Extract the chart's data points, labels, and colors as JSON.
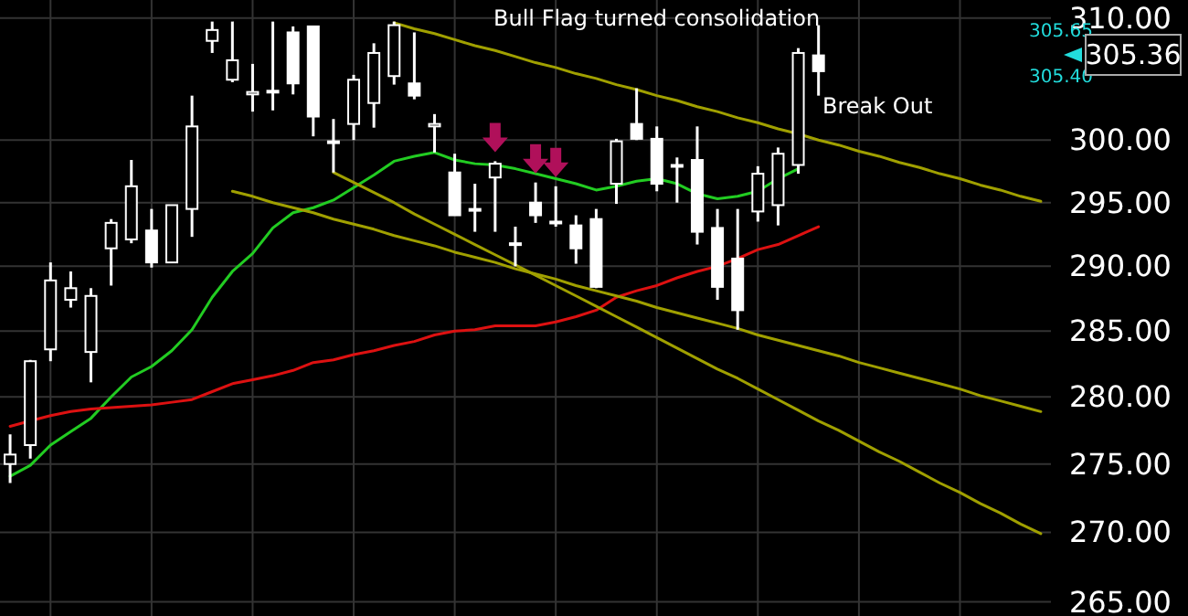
{
  "chart_data": {
    "type": "candlestick",
    "color": "#ffffff",
    "log": true,
    "grid": true,
    "tick_labels": "y",
    "categories": [
      null,
      null,
      null,
      null,
      null,
      null,
      null,
      null,
      null,
      null,
      null,
      null,
      null,
      null,
      null,
      null,
      null,
      null,
      null,
      null,
      null,
      null,
      null,
      null,
      null,
      null,
      null,
      null,
      null,
      null,
      null,
      null,
      null,
      null,
      null,
      null,
      null,
      null,
      null,
      null,
      null,
      null,
      null,
      null,
      null,
      null,
      null,
      null,
      null,
      null,
      null,
      null
    ],
    "ylim": [
      264,
      311.5
    ],
    "yticks": [
      {
        "value": 265,
        "label": "265.00"
      },
      {
        "value": 270,
        "label": "270.00"
      },
      {
        "value": 275,
        "label": "275.00"
      },
      {
        "value": 280,
        "label": "280.00"
      },
      {
        "value": 285,
        "label": "285.00"
      },
      {
        "value": 290,
        "label": "290.00"
      },
      {
        "value": 295,
        "label": "295.00"
      },
      {
        "value": 300,
        "label": "300.00"
      },
      {
        "value": 310,
        "label": "310.00"
      }
    ],
    "ohlc": [
      [
        275.0,
        277.2,
        273.6,
        275.7
      ],
      [
        276.4,
        282.8,
        275.4,
        282.7
      ],
      [
        283.6,
        290.3,
        282.7,
        288.9
      ],
      [
        287.4,
        289.6,
        286.8,
        288.3
      ],
      [
        283.4,
        288.3,
        281.1,
        287.7
      ],
      [
        291.4,
        293.7,
        288.5,
        293.4
      ],
      [
        292.1,
        298.4,
        291.8,
        296.3
      ],
      [
        292.8,
        294.5,
        289.9,
        290.3
      ],
      [
        290.3,
        294.8,
        290.3,
        294.8
      ],
      [
        294.5,
        303.6,
        292.3,
        301.1
      ],
      [
        308.1,
        309.7,
        307.1,
        309.0
      ],
      [
        304.9,
        309.7,
        304.7,
        306.5
      ],
      [
        303.7,
        306.2,
        302.3,
        303.9
      ],
      [
        303.9,
        309.7,
        302.4,
        304.0
      ],
      [
        308.8,
        309.3,
        303.7,
        304.6
      ],
      [
        309.3,
        309.3,
        300.3,
        301.9
      ],
      [
        299.9,
        301.7,
        297.4,
        299.9
      ],
      [
        301.3,
        305.3,
        300.0,
        304.9
      ],
      [
        303.0,
        307.9,
        301.0,
        307.1
      ],
      [
        305.2,
        309.7,
        304.5,
        309.4
      ],
      [
        304.6,
        308.8,
        303.3,
        303.6
      ],
      [
        301.1,
        302.1,
        299.0,
        301.3
      ],
      [
        297.4,
        298.9,
        294.0,
        294.0
      ],
      [
        294.5,
        296.5,
        292.7,
        294.5
      ],
      [
        297.0,
        298.3,
        292.7,
        298.1
      ],
      [
        291.7,
        293.1,
        290.0,
        291.8
      ],
      [
        295.0,
        296.6,
        293.4,
        294.0
      ],
      [
        293.4,
        296.3,
        293.1,
        293.5
      ],
      [
        293.2,
        294.0,
        290.2,
        291.4
      ],
      [
        293.7,
        294.5,
        288.3,
        288.4
      ],
      [
        296.5,
        300.1,
        294.9,
        299.9
      ],
      [
        301.3,
        304.2,
        300.0,
        300.1
      ],
      [
        300.1,
        301.1,
        295.9,
        296.5
      ],
      [
        298.0,
        298.6,
        295.0,
        298.0
      ],
      [
        298.4,
        301.1,
        291.7,
        292.7
      ],
      [
        293.0,
        294.5,
        287.4,
        288.4
      ],
      [
        290.6,
        294.5,
        285.1,
        286.6
      ],
      [
        294.3,
        297.9,
        293.5,
        297.3
      ],
      [
        294.8,
        299.4,
        293.2,
        298.9
      ],
      [
        298.0,
        307.5,
        297.3,
        307.1
      ],
      [
        306.9,
        309.4,
        303.6,
        305.6
      ],
      null,
      null,
      null,
      null,
      null,
      null,
      null,
      null,
      null,
      null,
      null
    ],
    "series": [
      {
        "type": "line",
        "color": "#22cc22",
        "values": [
          274.1,
          274.9,
          276.4,
          277.4,
          278.4,
          280.0,
          281.5,
          282.3,
          283.5,
          285.1,
          287.6,
          289.6,
          291.0,
          293.0,
          294.2,
          294.6,
          295.2,
          296.2,
          297.2,
          298.3,
          298.7,
          299.0,
          298.4,
          298.1,
          298.0,
          297.7,
          297.3,
          296.9,
          296.5,
          296.0,
          296.3,
          296.7,
          296.9,
          296.5,
          295.7,
          295.3,
          295.5,
          295.9,
          296.9,
          297.7,
          null,
          null,
          null,
          null,
          null,
          null,
          null,
          null,
          null,
          null,
          null,
          null
        ]
      },
      {
        "type": "line",
        "color": "#dd1111",
        "values": [
          277.8,
          278.2,
          278.6,
          278.9,
          279.1,
          279.2,
          279.3,
          279.4,
          279.6,
          279.8,
          280.4,
          281.0,
          281.3,
          281.6,
          282.0,
          282.6,
          282.8,
          283.2,
          283.5,
          283.9,
          284.2,
          284.7,
          285.0,
          285.1,
          285.4,
          285.4,
          285.4,
          285.7,
          286.1,
          286.6,
          287.6,
          288.1,
          288.5,
          289.1,
          289.6,
          290.0,
          290.6,
          291.3,
          291.7,
          292.4,
          293.1,
          null,
          null,
          null,
          null,
          null,
          null,
          null,
          null,
          null,
          null,
          null
        ]
      },
      {
        "type": "line",
        "color": "#a0a000",
        "values": [
          null,
          null,
          null,
          null,
          null,
          null,
          null,
          null,
          null,
          null,
          null,
          null,
          null,
          null,
          null,
          null,
          null,
          null,
          null,
          309.6,
          309.1,
          308.7,
          308.2,
          307.7,
          307.3,
          306.8,
          306.3,
          305.9,
          305.4,
          305.0,
          304.5,
          304.1,
          303.6,
          303.2,
          302.7,
          302.3,
          301.8,
          301.4,
          300.9,
          300.5,
          300.0,
          299.6,
          299.1,
          298.7,
          298.2,
          297.8,
          297.3,
          296.9,
          296.4,
          296.0,
          295.5,
          295.1
        ]
      },
      {
        "type": "line",
        "color": "#a0a000",
        "values": [
          null,
          null,
          null,
          null,
          null,
          null,
          null,
          null,
          null,
          null,
          null,
          null,
          null,
          null,
          null,
          null,
          297.4,
          296.6,
          295.8,
          295.0,
          294.1,
          293.3,
          292.5,
          291.7,
          290.9,
          290.1,
          289.3,
          288.5,
          287.7,
          286.9,
          286.1,
          285.3,
          284.5,
          283.7,
          282.9,
          282.1,
          281.4,
          280.6,
          279.8,
          279.0,
          278.2,
          277.5,
          276.7,
          275.9,
          275.2,
          274.4,
          273.6,
          272.9,
          272.1,
          271.4,
          270.6,
          269.9
        ]
      },
      {
        "type": "line",
        "color": "#a0a000",
        "values": [
          null,
          null,
          null,
          null,
          null,
          null,
          null,
          null,
          null,
          null,
          null,
          295.9,
          295.5,
          295.0,
          294.6,
          294.2,
          293.7,
          293.3,
          292.9,
          292.4,
          292.0,
          291.6,
          291.1,
          290.7,
          290.3,
          289.8,
          289.4,
          289.0,
          288.5,
          288.1,
          287.7,
          287.3,
          286.8,
          286.4,
          286.0,
          285.6,
          285.2,
          284.7,
          284.3,
          283.9,
          283.5,
          283.1,
          282.6,
          282.2,
          281.8,
          281.4,
          281.0,
          280.6,
          280.1,
          279.7,
          279.3,
          278.9
        ]
      }
    ],
    "annotations": [
      "Bull Flag turned consolidation",
      "Break Out",
      "305.65",
      "305.40",
      "305.36"
    ]
  }
}
